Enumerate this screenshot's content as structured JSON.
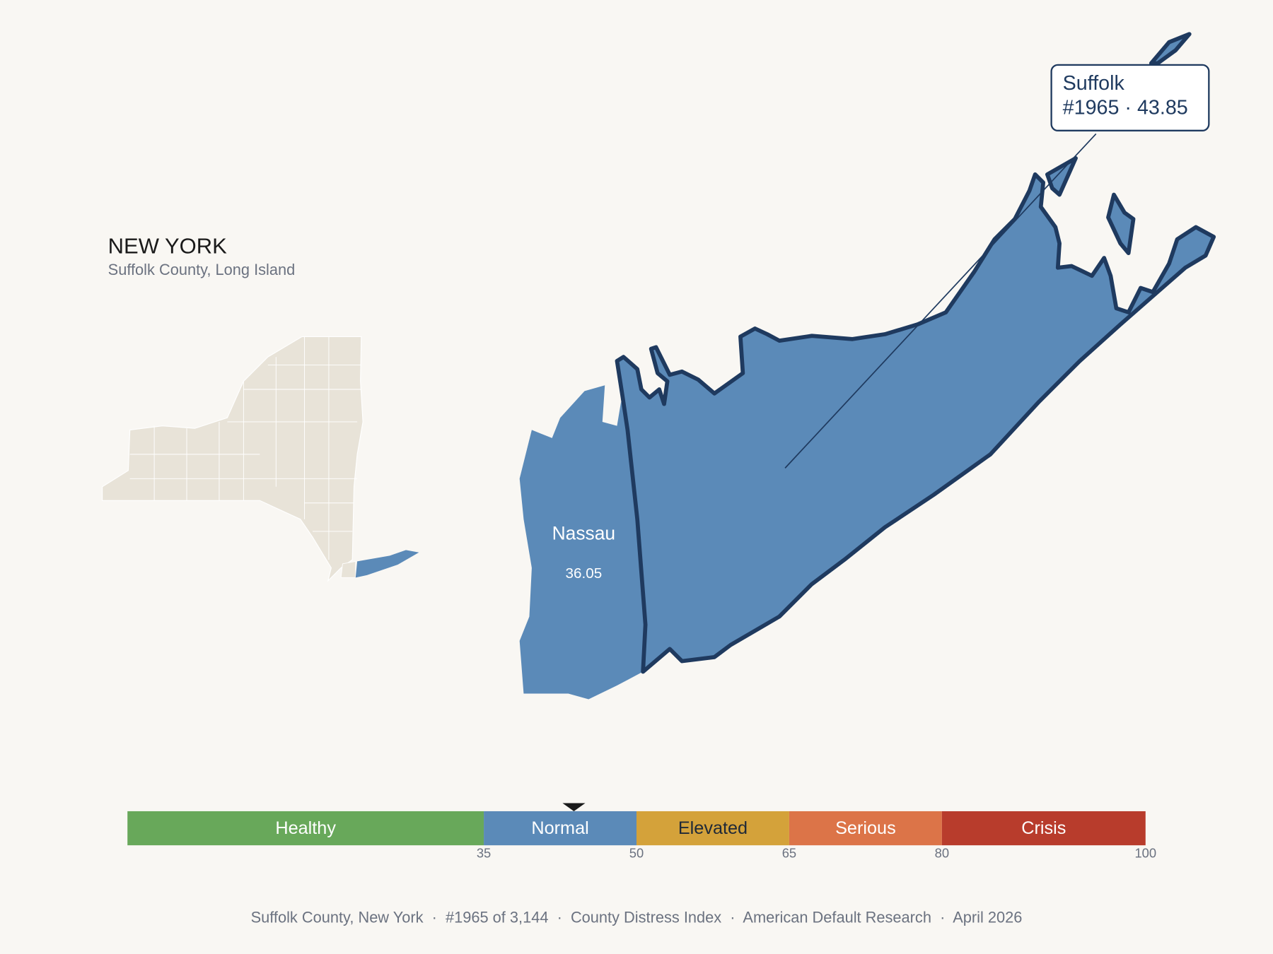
{
  "header": {
    "title": "NEW YORK",
    "subtitle": "Suffolk County, Long Island"
  },
  "map": {
    "callout": {
      "name": "Suffolk",
      "label": "#1965 · 43.85"
    },
    "neighbor": {
      "name": "Nassau",
      "score": 36.05
    }
  },
  "scale": {
    "range": [
      0,
      100
    ],
    "ticks": [
      35,
      50,
      65,
      80,
      100
    ],
    "marker": 43.85,
    "bands": [
      {
        "name": "Healthy",
        "color": "#68a85a",
        "text_color": "#ffffff"
      },
      {
        "name": "Normal",
        "color": "#5b8ab8",
        "text_color": "#ffffff"
      },
      {
        "name": "Elevated",
        "color": "#d4a23a",
        "text_color": "#1f2937"
      },
      {
        "name": "Serious",
        "color": "#dc7448",
        "text_color": "#ffffff"
      },
      {
        "name": "Crisis",
        "color": "#b83c2c",
        "text_color": "#ffffff"
      }
    ]
  },
  "footer": "Suffolk County, New York  ·  #1965 of 3,144  ·  County Distress Index  ·  American Default Research  ·  April 2026"
}
